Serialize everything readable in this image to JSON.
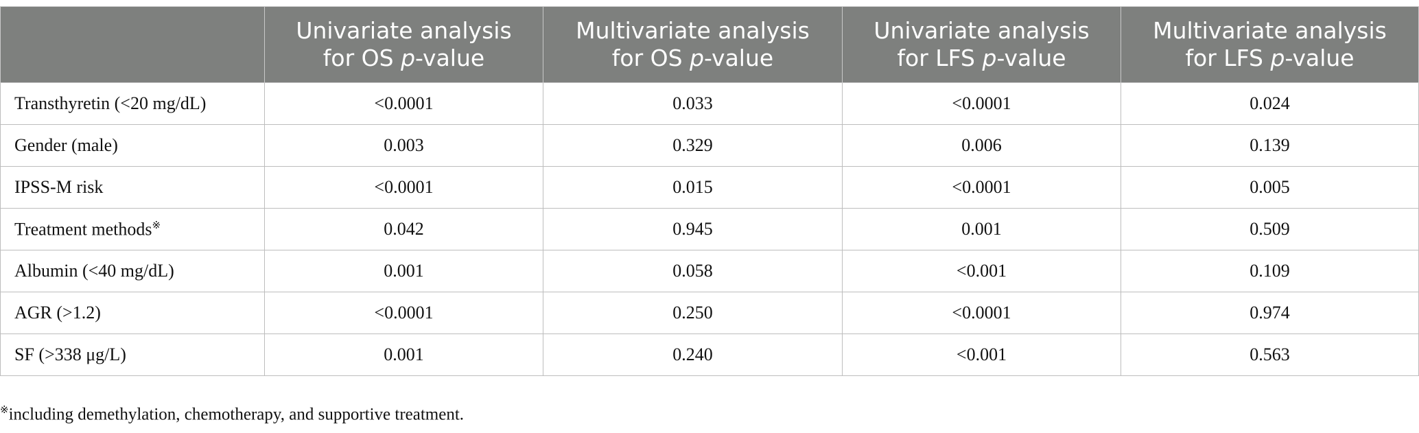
{
  "table": {
    "header": [
      [
        "Univariate analysis",
        "for OS ",
        "p",
        "-value"
      ],
      [
        "Multivariate analysis",
        "for OS ",
        "p",
        "-value"
      ],
      [
        "Univariate analysis",
        "for LFS ",
        "p",
        "-value"
      ],
      [
        "Multivariate analysis",
        "for LFS ",
        "p",
        "-value"
      ]
    ],
    "rows": [
      [
        [
          "Transthyretin (<20 mg/dL)"
        ],
        "<0.0001",
        "0.033",
        "<0.0001",
        "0.024"
      ],
      [
        [
          "Gender (male)"
        ],
        "0.003",
        "0.329",
        "0.006",
        "0.139"
      ],
      [
        [
          "IPSS-M risk"
        ],
        "<0.0001",
        "0.015",
        "<0.0001",
        "0.005"
      ],
      [
        [
          "Treatment methods",
          "※"
        ],
        "0.042",
        "0.945",
        "0.001",
        "0.509"
      ],
      [
        [
          "Albumin (<40 mg/dL)"
        ],
        "0.001",
        "0.058",
        "<0.001",
        "0.109"
      ],
      [
        [
          "AGR (>1.2)"
        ],
        "<0.0001",
        "0.250",
        "<0.0001",
        "0.974"
      ],
      [
        [
          "SF (>338 μg/L)"
        ],
        "0.001",
        "0.240",
        "<0.001",
        "0.563"
      ]
    ]
  },
  "footnote": [
    "※",
    "including demethylation, chemotherapy, and supportive treatment."
  ]
}
